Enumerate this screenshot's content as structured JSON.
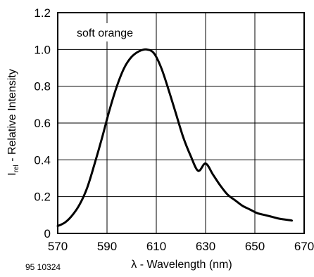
{
  "chart_data": {
    "type": "line",
    "title": "",
    "xlabel": "λ - Wavelength (nm)",
    "ylabel": {
      "prefix": "I",
      "subscript": "rel",
      "suffix": " - Relative Intensity"
    },
    "xlim": [
      570,
      670
    ],
    "ylim": [
      0,
      1.2
    ],
    "x_ticks": [
      {
        "value": 570,
        "label": "570"
      },
      {
        "value": 590,
        "label": "590"
      },
      {
        "value": 610,
        "label": "610"
      },
      {
        "value": 630,
        "label": "630"
      },
      {
        "value": 650,
        "label": "650"
      },
      {
        "value": 670,
        "label": "670"
      }
    ],
    "y_ticks": [
      {
        "value": 0,
        "label": "0"
      },
      {
        "value": 0.2,
        "label": "0.2"
      },
      {
        "value": 0.4,
        "label": "0.4"
      },
      {
        "value": 0.6,
        "label": "0.6"
      },
      {
        "value": 0.8,
        "label": "0.8"
      },
      {
        "value": 1.0,
        "label": "1.0"
      },
      {
        "value": 1.2,
        "label": "1.2"
      }
    ],
    "grid": true,
    "annotation": "soft orange",
    "figure_id": "95 10324",
    "series": [
      {
        "color": "#000000",
        "x": [
          570,
          573,
          576,
          579,
          582,
          585,
          588,
          591,
          594,
          597,
          600,
          603,
          606,
          609,
          612,
          615,
          618,
          621,
          624,
          627,
          630,
          633,
          636,
          639,
          642,
          645,
          648,
          651,
          654,
          657,
          660,
          665
        ],
        "y": [
          0.04,
          0.06,
          0.1,
          0.16,
          0.25,
          0.38,
          0.52,
          0.67,
          0.8,
          0.9,
          0.96,
          0.99,
          1.0,
          0.98,
          0.9,
          0.78,
          0.65,
          0.52,
          0.42,
          0.34,
          0.38,
          0.32,
          0.26,
          0.21,
          0.18,
          0.15,
          0.13,
          0.11,
          0.1,
          0.09,
          0.08,
          0.07
        ]
      }
    ]
  }
}
